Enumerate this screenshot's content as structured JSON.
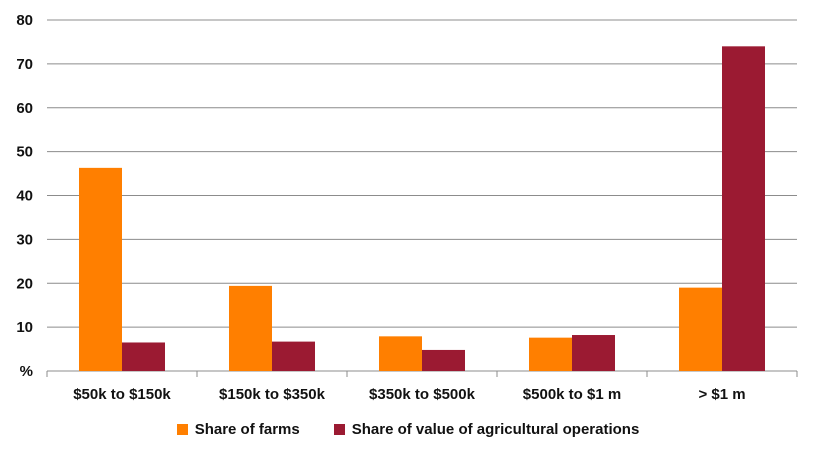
{
  "chart_data": {
    "type": "bar",
    "categories": [
      "$50k to $150k",
      "$150k to $350k",
      "$350k to $500k",
      "$500k to $1 m",
      "> $1 m"
    ],
    "series": [
      {
        "name": "Share of farms",
        "color": "#ff7f00",
        "values": [
          46.3,
          19.4,
          7.9,
          7.6,
          19.0
        ]
      },
      {
        "name": "Share of value of agricultural operations",
        "color": "#9b1a32",
        "values": [
          6.5,
          6.7,
          4.8,
          8.2,
          74.0
        ]
      }
    ],
    "y_ticks": [
      "%",
      "10",
      "20",
      "30",
      "40",
      "50",
      "60",
      "70",
      "80"
    ],
    "ylim": [
      0,
      80
    ],
    "grid": true,
    "legend_position": "bottom-center"
  }
}
